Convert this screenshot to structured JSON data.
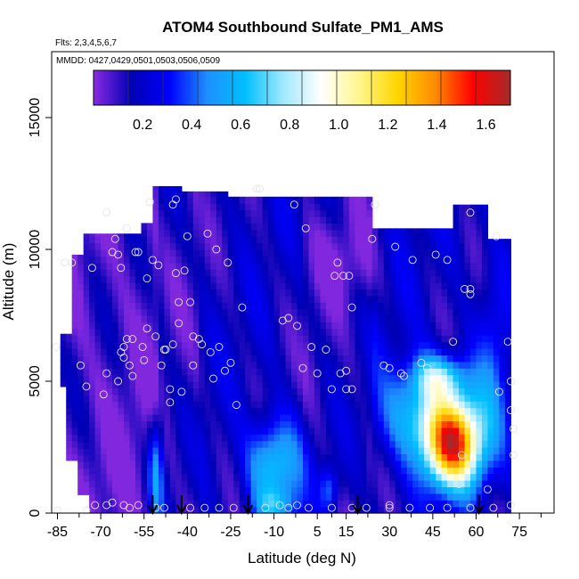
{
  "chart_data": {
    "type": "heatmap",
    "title": "ATOM4 Southbound Sulfate_PM1_AMS",
    "subtitle_flights": "Flts: 2,3,4,5,6,7",
    "subtitle_dates": "MMDD: 0427,0429,0501,0503,0506,0509",
    "xlabel": "Latitude (deg N)",
    "ylabel": "Altitude (m)",
    "xlim": [
      -87,
      87
    ],
    "ylim": [
      0,
      17500
    ],
    "x_ticks": [
      -85,
      -70,
      -55,
      -40,
      -25,
      -10,
      5,
      15,
      30,
      45,
      60,
      75
    ],
    "x_tick_labels": [
      "-85",
      "-70",
      "-55",
      "-40",
      "-25",
      "-10",
      "5",
      "15",
      "30",
      "45",
      "60",
      "75"
    ],
    "x_minor_ticks": [
      -77.5,
      -62.5,
      -47.5,
      -32.5,
      -17.5,
      -2.5,
      10,
      22.5,
      37.5,
      52.5,
      67.5,
      82.5
    ],
    "y_ticks": [
      0,
      5000,
      10000,
      15000
    ],
    "y_tick_labels": [
      "0",
      "5000",
      "10000",
      "15000"
    ],
    "colorbar": {
      "min": 0,
      "max": 1.7,
      "ticks": [
        0.2,
        0.4,
        0.6,
        0.8,
        1.0,
        1.2,
        1.4,
        1.6
      ],
      "tick_labels": [
        "0.2",
        "0.4",
        "0.6",
        "0.8",
        "1.0",
        "1.2",
        "1.4",
        "1.6"
      ],
      "colors": [
        "#8A2BE2",
        "#0000B4",
        "#0000FF",
        "#1E90FF",
        "#00BFFF",
        "#A0E8FF",
        "#FFFFFF",
        "#FFF68F",
        "#FFD700",
        "#FF8C00",
        "#FF0000",
        "#A52A2A"
      ],
      "n_segments": 12
    },
    "arrow_latitudes": [
      -52,
      -42,
      -19,
      19,
      61
    ],
    "sample_points": [
      {
        "lat": -85.5,
        "alt": 6300
      },
      {
        "lat": -82.5,
        "alt": 9500
      },
      {
        "lat": -80,
        "alt": 9500
      },
      {
        "lat": -77,
        "alt": 5600
      },
      {
        "lat": -75,
        "alt": 4800
      },
      {
        "lat": -73,
        "alt": 9300
      },
      {
        "lat": -72,
        "alt": 300
      },
      {
        "lat": -69,
        "alt": 4500
      },
      {
        "lat": -68,
        "alt": 11400
      },
      {
        "lat": -68,
        "alt": 5300
      },
      {
        "lat": -66,
        "alt": 9900
      },
      {
        "lat": -65,
        "alt": 10400
      },
      {
        "lat": -64,
        "alt": 9800
      },
      {
        "lat": -64,
        "alt": 5000
      },
      {
        "lat": -63,
        "alt": 9300
      },
      {
        "lat": -63,
        "alt": 6100
      },
      {
        "lat": -62,
        "alt": 6300
      },
      {
        "lat": -61,
        "alt": 10800
      },
      {
        "lat": -62,
        "alt": 5900
      },
      {
        "lat": -61,
        "alt": 6600
      },
      {
        "lat": -60,
        "alt": 5600
      },
      {
        "lat": -59,
        "alt": 6600
      },
      {
        "lat": -59,
        "alt": 5200
      },
      {
        "lat": -58,
        "alt": 9900
      },
      {
        "lat": -57,
        "alt": 9900
      },
      {
        "lat": -55.5,
        "alt": 6300
      },
      {
        "lat": -55,
        "alt": 5800
      },
      {
        "lat": -54,
        "alt": 7000
      },
      {
        "lat": -54,
        "alt": 8900
      },
      {
        "lat": -53,
        "alt": 11800
      },
      {
        "lat": -52,
        "alt": 9600
      },
      {
        "lat": -51,
        "alt": 6700
      },
      {
        "lat": -50,
        "alt": 9400
      },
      {
        "lat": -49,
        "alt": 5600
      },
      {
        "lat": -48,
        "alt": 6200
      },
      {
        "lat": -47.5,
        "alt": 6200
      },
      {
        "lat": -46,
        "alt": 4700
      },
      {
        "lat": -46,
        "alt": 4200
      },
      {
        "lat": -45,
        "alt": 6400
      },
      {
        "lat": -45,
        "alt": 11700
      },
      {
        "lat": -44,
        "alt": 11900
      },
      {
        "lat": -44,
        "alt": 9100
      },
      {
        "lat": -43,
        "alt": 8000
      },
      {
        "lat": -43,
        "alt": 7200
      },
      {
        "lat": -42,
        "alt": 4600
      },
      {
        "lat": -41,
        "alt": 9200
      },
      {
        "lat": -40,
        "alt": 10500
      },
      {
        "lat": -39,
        "alt": 8000
      },
      {
        "lat": -38,
        "alt": 5600
      },
      {
        "lat": -38,
        "alt": 6700
      },
      {
        "lat": -36,
        "alt": 6600
      },
      {
        "lat": -35,
        "alt": 6400
      },
      {
        "lat": -33,
        "alt": 10600
      },
      {
        "lat": -32,
        "alt": 6100
      },
      {
        "lat": -31,
        "alt": 5100
      },
      {
        "lat": -30,
        "alt": 10000
      },
      {
        "lat": -29,
        "alt": 6300
      },
      {
        "lat": -27,
        "alt": 5400
      },
      {
        "lat": -26,
        "alt": 9500
      },
      {
        "lat": -25,
        "alt": 5700
      },
      {
        "lat": -23,
        "alt": 4100
      },
      {
        "lat": -21,
        "alt": 7800
      },
      {
        "lat": -16,
        "alt": 12300
      },
      {
        "lat": -15,
        "alt": 12300
      },
      {
        "lat": -7,
        "alt": 7300
      },
      {
        "lat": -5,
        "alt": 7400
      },
      {
        "lat": -3,
        "alt": 11700
      },
      {
        "lat": -2,
        "alt": 7100
      },
      {
        "lat": 0,
        "alt": 5500
      },
      {
        "lat": 1,
        "alt": 10800
      },
      {
        "lat": 3,
        "alt": 6300
      },
      {
        "lat": 5,
        "alt": 5300
      },
      {
        "lat": 8,
        "alt": 6200
      },
      {
        "lat": 10,
        "alt": 4700
      },
      {
        "lat": 11,
        "alt": 9000
      },
      {
        "lat": 12,
        "alt": 9500
      },
      {
        "lat": 13,
        "alt": 5300
      },
      {
        "lat": 14,
        "alt": 9000
      },
      {
        "lat": 15,
        "alt": 5400
      },
      {
        "lat": 15,
        "alt": 4700
      },
      {
        "lat": 16,
        "alt": 9000
      },
      {
        "lat": 17,
        "alt": 7800
      },
      {
        "lat": 17,
        "alt": 4700
      },
      {
        "lat": 24,
        "alt": 10400
      },
      {
        "lat": 25,
        "alt": 11700
      },
      {
        "lat": 28,
        "alt": 5600
      },
      {
        "lat": 30,
        "alt": 5500
      },
      {
        "lat": 32,
        "alt": 10100
      },
      {
        "lat": 34,
        "alt": 5300
      },
      {
        "lat": 35,
        "alt": 5200
      },
      {
        "lat": 38,
        "alt": 9600
      },
      {
        "lat": 41,
        "alt": 5700
      },
      {
        "lat": 43,
        "alt": 5500
      },
      {
        "lat": 46,
        "alt": 9800
      },
      {
        "lat": 50,
        "alt": 9600
      },
      {
        "lat": 52,
        "alt": 6500
      },
      {
        "lat": 55,
        "alt": 2200
      },
      {
        "lat": 54,
        "alt": 1100
      },
      {
        "lat": 56,
        "alt": 8500
      },
      {
        "lat": 58,
        "alt": 8300
      },
      {
        "lat": 58,
        "alt": 8500
      },
      {
        "lat": 58,
        "alt": 11400
      },
      {
        "lat": 64,
        "alt": 900
      },
      {
        "lat": 67,
        "alt": 10500
      },
      {
        "lat": 68,
        "alt": 4600
      },
      {
        "lat": 71,
        "alt": 6500
      },
      {
        "lat": 72,
        "alt": 5000
      },
      {
        "lat": 72,
        "alt": 3900
      },
      {
        "lat": 73,
        "alt": 3200
      },
      {
        "lat": 73,
        "alt": 2200
      },
      {
        "lat": 72,
        "alt": 300
      },
      {
        "lat": -85,
        "alt": 100
      },
      {
        "lat": -75,
        "alt": 100
      },
      {
        "lat": -68,
        "alt": 300
      },
      {
        "lat": -66,
        "alt": 400
      },
      {
        "lat": -62,
        "alt": 300
      },
      {
        "lat": -60,
        "alt": 200
      },
      {
        "lat": -57,
        "alt": 300
      },
      {
        "lat": -51,
        "alt": 200
      },
      {
        "lat": -48,
        "alt": 200
      },
      {
        "lat": -39,
        "alt": 200
      },
      {
        "lat": -34,
        "alt": 200
      },
      {
        "lat": -29,
        "alt": 200
      },
      {
        "lat": -24,
        "alt": 200
      },
      {
        "lat": -13,
        "alt": 200
      },
      {
        "lat": -8,
        "alt": 300
      },
      {
        "lat": -5,
        "alt": 200
      },
      {
        "lat": -2,
        "alt": 300
      },
      {
        "lat": 2,
        "alt": 200
      },
      {
        "lat": 10,
        "alt": 200
      },
      {
        "lat": 17,
        "alt": 200
      },
      {
        "lat": 22,
        "alt": 200
      },
      {
        "lat": 30,
        "alt": 300
      },
      {
        "lat": 30,
        "alt": 200
      },
      {
        "lat": 37,
        "alt": 200
      },
      {
        "lat": 44,
        "alt": 200
      },
      {
        "lat": 50,
        "alt": 200
      },
      {
        "lat": 58,
        "alt": 200
      },
      {
        "lat": 66,
        "alt": 200
      }
    ]
  }
}
